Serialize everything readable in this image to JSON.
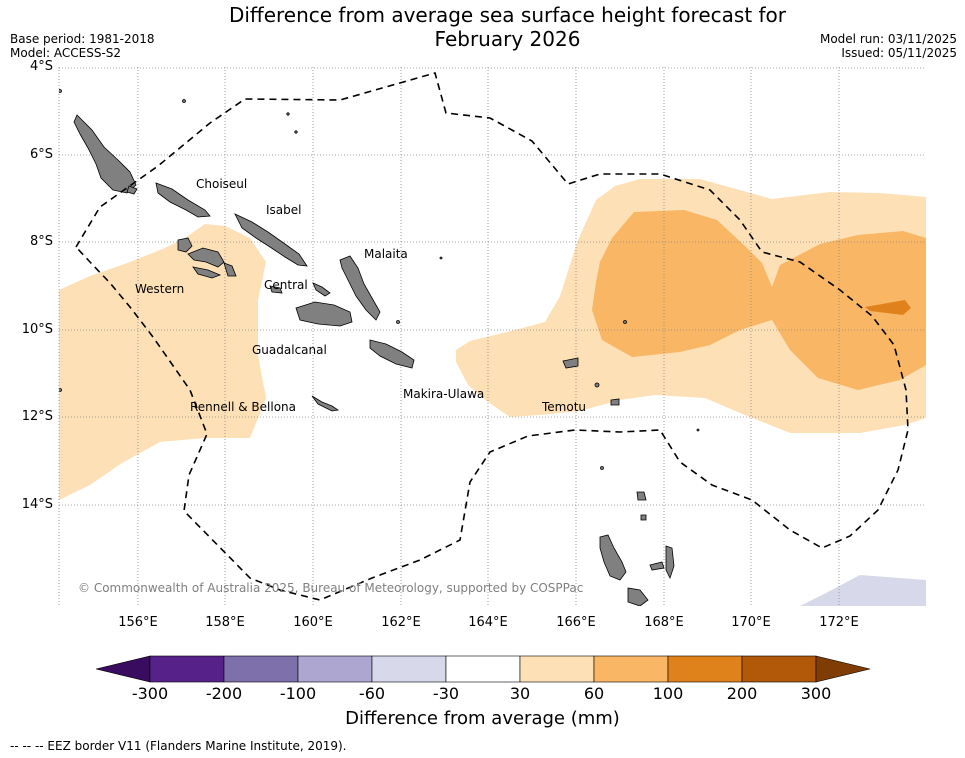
{
  "title_line1": "Difference from average sea surface height forecast for",
  "title_line2": "February 2026",
  "base_period": "Base period: 1981-2018",
  "model": "Model: ACCESS-S2",
  "model_run": "Model run: 03/11/2025",
  "issued": "Issued: 05/11/2025",
  "lat_labels": [
    "4°S",
    "6°S",
    "8°S",
    "10°S",
    "12°S",
    "14°S"
  ],
  "lon_labels": [
    "156°E",
    "158°E",
    "160°E",
    "162°E",
    "164°E",
    "166°E",
    "168°E",
    "170°E",
    "172°E"
  ],
  "provinces": [
    "Choiseul",
    "Isabel",
    "Malaita",
    "Western",
    "Central",
    "Guadalcanal",
    "Makira-Ulawa",
    "Temotu",
    "Rennell & Bellona"
  ],
  "copyright": "© Commonwealth of Australia 2025, Bureau of Meteorology, supported by COSPPac",
  "colorbar": {
    "ticks": [
      "-300",
      "-200",
      "-100",
      "-60",
      "-30",
      "30",
      "60",
      "100",
      "200",
      "300"
    ],
    "colors": [
      "#56228a",
      "#7e70aa",
      "#aca6d0",
      "#d7d8ea",
      "#ffffff",
      "#fde0b6",
      "#f9b664",
      "#e0821c",
      "#b15908"
    ],
    "under_color": "#3a0c60",
    "over_color": "#7f3c05",
    "label": "Difference from average (mm)"
  },
  "legend_text": "--  --  -- EEZ border V11 (Flanders Marine Institute, 2019).",
  "colors": {
    "land": "#808080",
    "grid": "#888888",
    "eez": "#000000"
  }
}
